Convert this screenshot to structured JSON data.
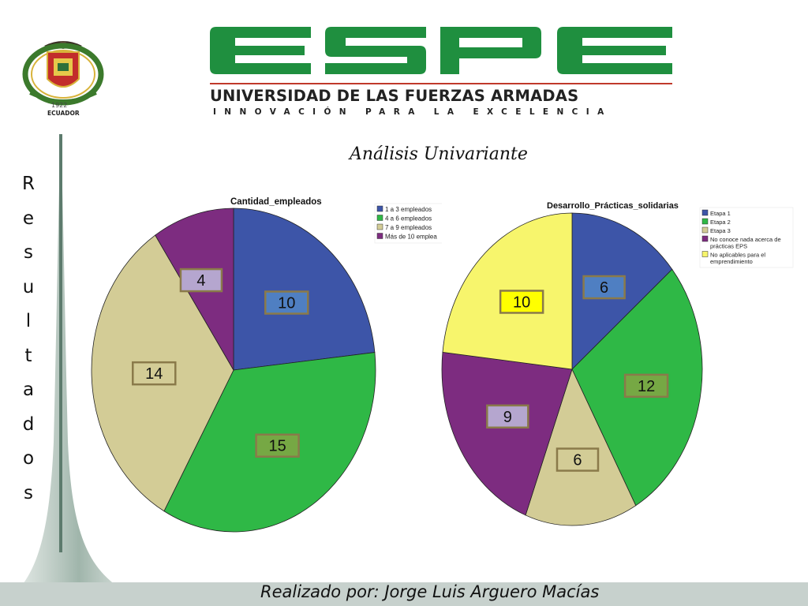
{
  "header": {
    "logo_text": "ESPE",
    "university_name": "UNIVERSIDAD DE LAS FUERZAS ARMADAS",
    "motto": "INNOVACIÓN PARA LA EXCELENCIA",
    "crest_year": "1922",
    "crest_country": "ECUADOR"
  },
  "slide": {
    "title": "Análisis Univariante",
    "side_letters": [
      "R",
      "e",
      "s",
      "u",
      "l",
      "t",
      "a",
      "d",
      "o",
      "s"
    ],
    "footer": "Realizado por: Jorge Luis Arguero Macías"
  },
  "colors": {
    "brand_green": "#1f8f3f",
    "blue": "#3d55a8",
    "green": "#2fb846",
    "tan": "#d3cc96",
    "purple": "#7d2c80",
    "yellow": "#f7f56c"
  },
  "chart_data": [
    {
      "type": "pie",
      "title": "Cantidad_empleados",
      "legend_position": "top-right",
      "categories": [
        "1 a 3 empleados",
        "4 a 6 empleados",
        "7 a 9 empleados",
        "Más de 10 emplea"
      ],
      "values": [
        10,
        15,
        14,
        4
      ],
      "data_labels": [
        "10",
        "15",
        "14",
        "4"
      ],
      "colors": [
        "#3d55a8",
        "#2fb846",
        "#d3cc96",
        "#7d2c80"
      ],
      "label_fills": [
        "#4f7fc2",
        "#76a844",
        "#d3cc96",
        "#b5a6cf"
      ]
    },
    {
      "type": "pie",
      "title": "Desarrollo_Prácticas_solidarias",
      "legend_position": "top-right",
      "categories": [
        "Etapa 1",
        "Etapa 2",
        "Etapa  3",
        "No conoce nada acerca de prácticas EPS",
        "No aplicables para el emprendimiento"
      ],
      "values": [
        6,
        12,
        6,
        9,
        10
      ],
      "data_labels": [
        "6",
        "12",
        "6",
        "9",
        "10"
      ],
      "colors": [
        "#3d55a8",
        "#2fb846",
        "#d3cc96",
        "#7d2c80",
        "#f7f56c"
      ],
      "label_fills": [
        "#4f7fc2",
        "#76a844",
        "#d3cc96",
        "#b5a6cf",
        "#ffff00"
      ]
    }
  ]
}
